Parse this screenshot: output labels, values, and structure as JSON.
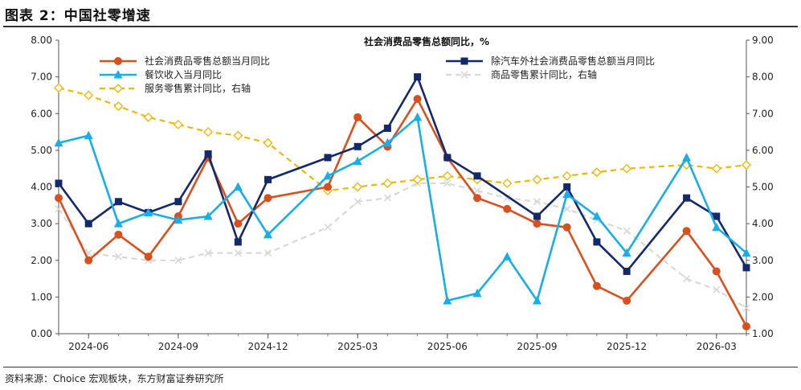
{
  "figure_title": "图表 2：中国社零增速",
  "source_note": "资料来源：Choice 宏观板块，东方财富证券研究所",
  "chart_data": {
    "type": "line",
    "title": "社会消费品零售总额同比，%",
    "x_tick_labels": [
      "2024-06",
      "2024-09",
      "2024-12",
      "2025-03",
      "2025-06",
      "2025-09",
      "2025-12",
      "2026-03"
    ],
    "x": [
      "2024-05",
      "2024-06",
      "2024-07",
      "2024-08",
      "2024-09",
      "2024-10",
      "2024-11",
      "2024-12",
      "2025-01",
      "2025-02",
      "2025-03",
      "2025-04",
      "2025-05",
      "2025-06",
      "2025-07",
      "2025-08",
      "2025-09",
      "2025-10",
      "2025-11",
      "2025-12",
      "2026-01",
      "2026-02",
      "2026-03",
      "2026-04"
    ],
    "y_left": {
      "min": 0,
      "max": 8,
      "ticks": [
        "0.00",
        "1.00",
        "2.00",
        "3.00",
        "4.00",
        "5.00",
        "6.00",
        "7.00",
        "8.00"
      ]
    },
    "y_right": {
      "min": 1,
      "max": 9,
      "ticks": [
        "1.00",
        "2.00",
        "3.00",
        "4.00",
        "5.00",
        "6.00",
        "7.00",
        "8.00",
        "9.00"
      ]
    },
    "grid": false,
    "legend_position": "top",
    "series": [
      {
        "name": "社会消费品零售总额当月同比",
        "axis": "left",
        "color": "#d9501f",
        "marker": "circle",
        "dash": "solid",
        "values": [
          3.7,
          2.0,
          2.7,
          2.1,
          3.2,
          4.8,
          3.0,
          3.7,
          null,
          4.0,
          5.9,
          5.1,
          6.4,
          4.8,
          3.7,
          3.4,
          3.0,
          2.9,
          1.3,
          0.9,
          null,
          2.8,
          1.7,
          0.2
        ]
      },
      {
        "name": "除汽车外社会消费品零售总额当月同比",
        "axis": "left",
        "color": "#14296b",
        "marker": "square",
        "dash": "solid",
        "values": [
          4.1,
          3.0,
          3.6,
          3.3,
          3.6,
          4.9,
          2.5,
          4.2,
          null,
          4.8,
          5.1,
          5.6,
          7.0,
          4.8,
          4.3,
          null,
          3.2,
          4.0,
          2.5,
          1.7,
          null,
          3.7,
          3.2,
          1.8
        ]
      },
      {
        "name": "餐饮收入当月同比",
        "axis": "left",
        "color": "#18aee8",
        "marker": "triangle",
        "dash": "solid",
        "values": [
          5.2,
          5.4,
          3.0,
          3.3,
          3.1,
          3.2,
          4.0,
          2.7,
          null,
          4.3,
          4.7,
          5.2,
          5.9,
          0.9,
          1.1,
          2.1,
          0.9,
          3.8,
          3.2,
          2.2,
          null,
          4.8,
          2.9,
          2.2
        ]
      },
      {
        "name": "商品零售累计同比，右轴",
        "axis": "right",
        "color": "#d9d9d9",
        "marker": "x",
        "dash": "dash",
        "values": [
          4.4,
          3.2,
          3.1,
          3.0,
          3.0,
          3.2,
          3.2,
          3.2,
          null,
          3.9,
          4.6,
          4.7,
          5.1,
          5.1,
          4.9,
          4.7,
          4.6,
          4.4,
          4.1,
          3.8,
          null,
          2.5,
          2.2,
          1.7
        ]
      },
      {
        "name": "服务零售累计同比，右轴",
        "axis": "right",
        "color": "#f2b705",
        "marker": "diamond",
        "dash": "dash",
        "values": [
          7.7,
          7.5,
          7.2,
          6.9,
          6.7,
          6.5,
          6.4,
          6.2,
          null,
          4.9,
          5.0,
          5.1,
          5.2,
          5.3,
          5.2,
          5.1,
          5.2,
          5.3,
          5.4,
          5.5,
          null,
          5.6,
          5.5,
          5.6
        ]
      }
    ]
  }
}
